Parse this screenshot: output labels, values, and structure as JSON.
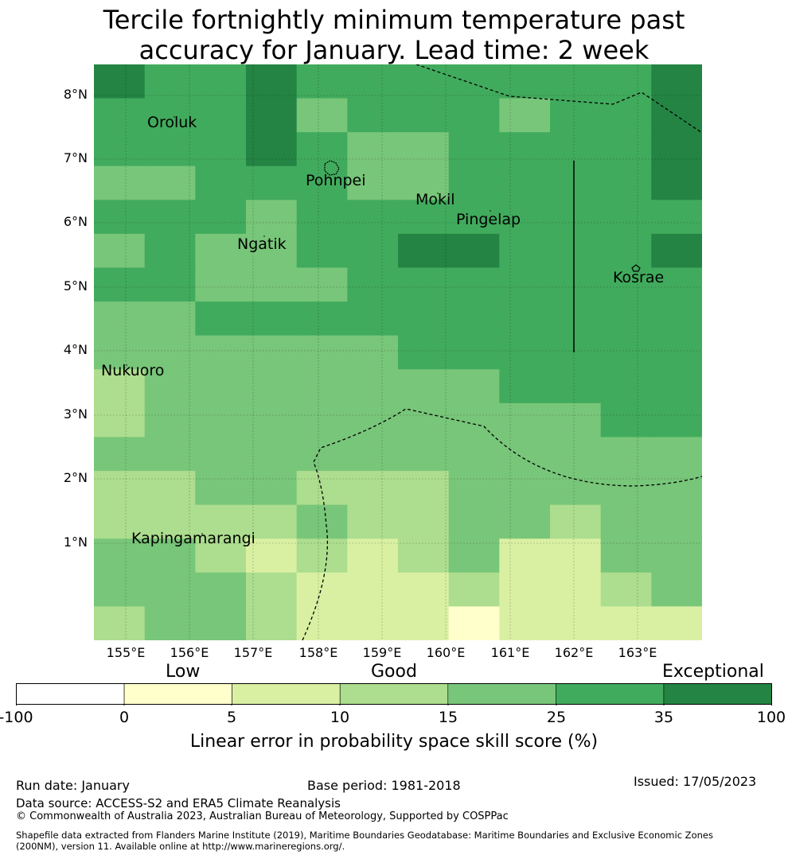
{
  "title_line1": "Tercile fortnightly minimum temperature past",
  "title_line2": "accuracy for January. Lead time: 2 week",
  "map": {
    "lat_labels": [
      "8°N",
      "7°N",
      "6°N",
      "5°N",
      "4°N",
      "3°N",
      "2°N",
      "1°N"
    ],
    "lon_labels": [
      "155°E",
      "156°E",
      "157°E",
      "158°E",
      "159°E",
      "160°E",
      "161°E",
      "162°E",
      "163°E"
    ],
    "places": [
      {
        "name": "Oroluk"
      },
      {
        "name": "Pohnpei"
      },
      {
        "name": "Mokil"
      },
      {
        "name": "Pingelap"
      },
      {
        "name": "Ngatik"
      },
      {
        "name": "Kosrae"
      },
      {
        "name": "Nukuoro"
      },
      {
        "name": "Kapingamarangi"
      }
    ],
    "skill_class_grid": [
      [
        6,
        5,
        5,
        6,
        5,
        5,
        5,
        5,
        5,
        5,
        5,
        6
      ],
      [
        5,
        5,
        5,
        6,
        4,
        5,
        5,
        5,
        4,
        5,
        5,
        6
      ],
      [
        5,
        5,
        5,
        6,
        5,
        4,
        4,
        5,
        5,
        5,
        5,
        6
      ],
      [
        4,
        4,
        5,
        5,
        5,
        4,
        4,
        5,
        5,
        5,
        5,
        6
      ],
      [
        5,
        5,
        5,
        4,
        5,
        5,
        5,
        5,
        5,
        5,
        5,
        5
      ],
      [
        4,
        5,
        4,
        4,
        5,
        5,
        6,
        6,
        5,
        5,
        5,
        6
      ],
      [
        5,
        5,
        4,
        4,
        4,
        5,
        5,
        5,
        5,
        5,
        5,
        5
      ],
      [
        4,
        4,
        5,
        5,
        5,
        5,
        5,
        5,
        5,
        5,
        5,
        5
      ],
      [
        4,
        4,
        4,
        4,
        4,
        4,
        5,
        5,
        5,
        5,
        5,
        5
      ],
      [
        3,
        4,
        4,
        4,
        4,
        4,
        4,
        4,
        5,
        5,
        5,
        5
      ],
      [
        3,
        4,
        4,
        4,
        4,
        4,
        4,
        4,
        4,
        4,
        5,
        5
      ],
      [
        4,
        4,
        4,
        4,
        4,
        4,
        4,
        4,
        4,
        4,
        4,
        4
      ],
      [
        3,
        3,
        4,
        4,
        3,
        3,
        3,
        4,
        4,
        4,
        4,
        4
      ],
      [
        3,
        3,
        3,
        3,
        4,
        3,
        3,
        4,
        4,
        3,
        4,
        4
      ],
      [
        4,
        4,
        3,
        2,
        3,
        2,
        3,
        4,
        2,
        2,
        4,
        4
      ],
      [
        4,
        4,
        4,
        3,
        2,
        2,
        2,
        3,
        2,
        2,
        3,
        4
      ],
      [
        3,
        4,
        4,
        3,
        2,
        2,
        2,
        1,
        2,
        2,
        2,
        2
      ]
    ]
  },
  "colorbar": {
    "categories": [
      "Low",
      "Good",
      "Exceptional"
    ],
    "ticks": [
      "-100",
      "0",
      "5",
      "10",
      "15",
      "25",
      "35",
      "100"
    ],
    "colors": [
      "#ffffff",
      "#ffffcc",
      "#d9f0a3",
      "#addd8e",
      "#78c679",
      "#41ab5d",
      "#238443"
    ],
    "label": "Linear error in probability space skill score (%)"
  },
  "footer": {
    "run_date": "Run date: January",
    "base_period": "Base period: 1981-2018",
    "issued": "Issued: 17/05/2023",
    "data_source": "Data source: ACCESS-S2 and ERA5 Climate Reanalysis",
    "copyright": "© Commonwealth of Australia 2023, Australian Bureau of Meteorology, Supported by COSPPac",
    "shapefile_line1": "Shapefile data extracted from Flanders Marine Institute (2019), Maritime Boundaries Geodatabase: Maritime Boundaries and Exclusive Economic Zones",
    "shapefile_line2": "(200NM), version 11. Available online at http://www.marineregions.org/."
  }
}
